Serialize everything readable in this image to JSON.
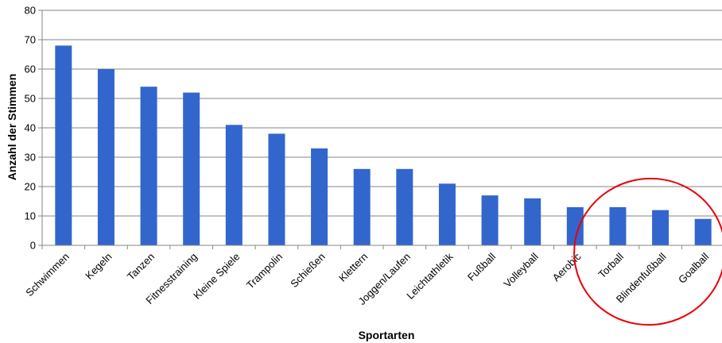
{
  "chart_data": {
    "type": "bar",
    "title": "",
    "xlabel": "Sportarten",
    "ylabel": "Anzahl der Stimmen",
    "ylim": [
      0,
      80
    ],
    "yticks": [
      0,
      10,
      20,
      30,
      40,
      50,
      60,
      70,
      80
    ],
    "grid": true,
    "categories": [
      "Schwimmen",
      "Kegeln",
      "Tanzen",
      "Fitnesstraining",
      "Kleine Spiele",
      "Trampolin",
      "Schießen",
      "Klettern",
      "Joggen/Laufen",
      "Leichtathletik",
      "Fußball",
      "Volleyball",
      "Aerobic",
      "Torball",
      "Blindenfußball",
      "Goalball"
    ],
    "values": [
      68,
      60,
      54,
      52,
      41,
      38,
      33,
      26,
      26,
      21,
      17,
      16,
      13,
      13,
      12,
      9
    ],
    "colors": {
      "bar": "#3366CC",
      "grid": "#868686",
      "highlight": "#E8000B"
    },
    "annotations": [
      {
        "type": "ellipse",
        "targets": [
          "Torball",
          "Blindenfußball",
          "Goalball"
        ]
      }
    ]
  }
}
